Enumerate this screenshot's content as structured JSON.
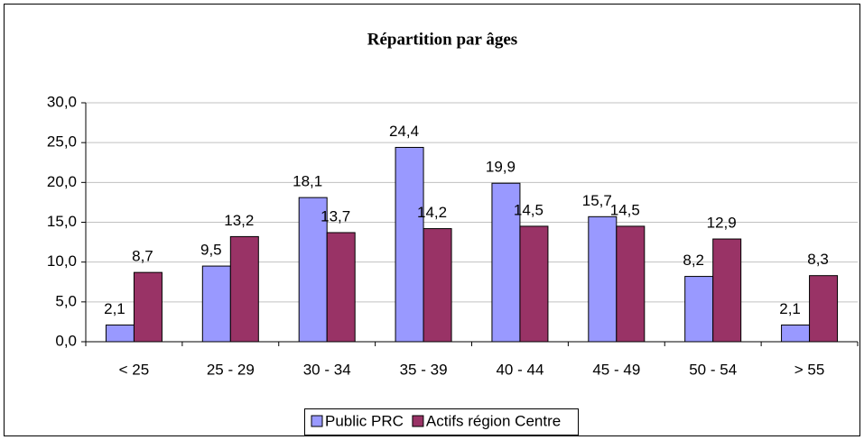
{
  "chart_data": {
    "type": "bar",
    "title": "Répartition par âges",
    "categories": [
      "< 25",
      "25 - 29",
      "30 - 34",
      "35 - 39",
      "40 - 44",
      "45 - 49",
      "50 - 54",
      "> 55"
    ],
    "series": [
      {
        "name": "Public PRC",
        "color": "#9999ff",
        "values": [
          2.1,
          9.5,
          18.1,
          24.4,
          19.9,
          15.7,
          8.2,
          2.1
        ],
        "value_labels": [
          "2,1",
          "9,5",
          "18,1",
          "24,4",
          "19,9",
          "15,7",
          "8,2",
          "2,1"
        ]
      },
      {
        "name": "Actifs région Centre",
        "color": "#993366",
        "values": [
          8.7,
          13.2,
          13.7,
          14.2,
          14.5,
          14.5,
          12.9,
          8.3
        ],
        "value_labels": [
          "8,7",
          "13,2",
          "13,7",
          "14,2",
          "14,5",
          "14,5",
          "12,9",
          "8,3"
        ]
      }
    ],
    "ylim": [
      0,
      30
    ],
    "yticks": [
      {
        "value": 0,
        "label": "0,0"
      },
      {
        "value": 5,
        "label": "5,0"
      },
      {
        "value": 10,
        "label": "10,0"
      },
      {
        "value": 15,
        "label": "15,0"
      },
      {
        "value": 20,
        "label": "20,0"
      },
      {
        "value": 25,
        "label": "25,0"
      },
      {
        "value": 30,
        "label": "30,0"
      }
    ],
    "grid": true,
    "legend": "bottom"
  }
}
